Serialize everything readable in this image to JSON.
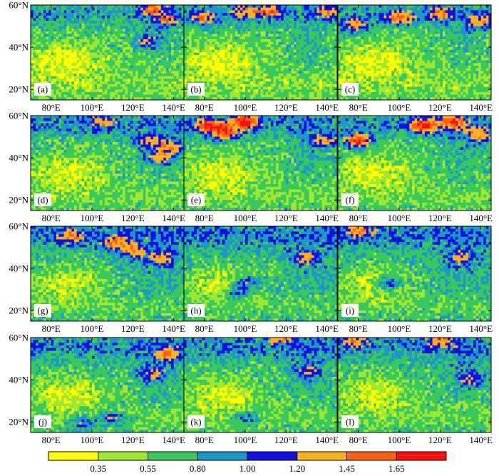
{
  "chart_data": {
    "type": "heatmap",
    "layout": "4x3 panel grid of map contour fields",
    "panels": [
      {
        "label": "(a)",
        "hotspots": [
          {
            "lon": 127,
            "lat": 43,
            "v": 1.25
          },
          {
            "lon": 130,
            "lat": 58,
            "v": 1.3
          },
          {
            "lon": 137,
            "lat": 53,
            "v": 1.2
          }
        ]
      },
      {
        "label": "(b)",
        "hotspots": [
          {
            "lon": 80,
            "lat": 54,
            "v": 1.3
          },
          {
            "lon": 100,
            "lat": 57,
            "v": 1.25
          },
          {
            "lon": 112,
            "lat": 57,
            "v": 1.35
          },
          {
            "lon": 140,
            "lat": 57,
            "v": 1.2
          }
        ]
      },
      {
        "label": "(c)",
        "hotspots": [
          {
            "lon": 78,
            "lat": 50,
            "v": 1.4
          },
          {
            "lon": 100,
            "lat": 54,
            "v": 1.45
          },
          {
            "lon": 120,
            "lat": 56,
            "v": 1.3
          },
          {
            "lon": 140,
            "lat": 52,
            "v": 1.25
          }
        ]
      },
      {
        "label": "(d)",
        "hotspots": [
          {
            "lon": 128,
            "lat": 48,
            "v": 1.2
          },
          {
            "lon": 138,
            "lat": 45,
            "v": 1.35
          },
          {
            "lon": 133,
            "lat": 40,
            "v": 1.25
          },
          {
            "lon": 105,
            "lat": 57,
            "v": 1.15
          }
        ]
      },
      {
        "label": "(e)",
        "hotspots": [
          {
            "lon": 82,
            "lat": 55,
            "v": 1.55
          },
          {
            "lon": 100,
            "lat": 57,
            "v": 1.7
          },
          {
            "lon": 90,
            "lat": 52,
            "v": 1.5
          },
          {
            "lon": 140,
            "lat": 48,
            "v": 1.3
          }
        ]
      },
      {
        "label": "(f)",
        "hotspots": [
          {
            "lon": 80,
            "lat": 48,
            "v": 1.75
          },
          {
            "lon": 112,
            "lat": 55,
            "v": 1.65
          },
          {
            "lon": 126,
            "lat": 57,
            "v": 1.5
          },
          {
            "lon": 140,
            "lat": 51,
            "v": 1.3
          }
        ]
      },
      {
        "label": "(g)",
        "hotspots": [
          {
            "lon": 112,
            "lat": 52,
            "v": 1.3
          },
          {
            "lon": 120,
            "lat": 48,
            "v": 1.25
          },
          {
            "lon": 90,
            "lat": 55,
            "v": 1.2
          },
          {
            "lon": 135,
            "lat": 45,
            "v": 1.2
          }
        ]
      },
      {
        "label": "(h)",
        "hotspots": [
          {
            "lon": 100,
            "lat": 33,
            "v": 1.3
          },
          {
            "lon": 130,
            "lat": 45,
            "v": 1.2
          },
          {
            "lon": 96,
            "lat": 28,
            "v": 1.15
          }
        ]
      },
      {
        "label": "(i)",
        "hotspots": [
          {
            "lon": 95,
            "lat": 33,
            "v": 1.3
          },
          {
            "lon": 80,
            "lat": 58,
            "v": 1.25
          },
          {
            "lon": 130,
            "lat": 45,
            "v": 1.15
          }
        ]
      },
      {
        "label": "(j)",
        "hotspots": [
          {
            "lon": 137,
            "lat": 52,
            "v": 1.3
          },
          {
            "lon": 130,
            "lat": 43,
            "v": 1.25
          },
          {
            "lon": 110,
            "lat": 22,
            "v": 1.2
          },
          {
            "lon": 95,
            "lat": 20,
            "v": 1.2
          }
        ]
      },
      {
        "label": "(k)",
        "hotspots": [
          {
            "lon": 118,
            "lat": 60,
            "v": 1.3
          },
          {
            "lon": 130,
            "lat": 44,
            "v": 1.2
          },
          {
            "lon": 100,
            "lat": 22,
            "v": 1.15
          }
        ]
      },
      {
        "label": "(l)",
        "hotspots": [
          {
            "lon": 120,
            "lat": 59,
            "v": 1.3
          },
          {
            "lon": 78,
            "lat": 59,
            "v": 1.25
          },
          {
            "lon": 135,
            "lat": 40,
            "v": 1.15
          }
        ]
      }
    ],
    "x_axis": {
      "range": [
        70,
        145
      ],
      "ticks": [
        80,
        100,
        120,
        140
      ],
      "tick_labels": [
        "80°E",
        "100°E",
        "120°E",
        "140°E"
      ]
    },
    "y_axis": {
      "range": [
        15,
        60
      ],
      "ticks": [
        20,
        40,
        60
      ],
      "tick_labels": [
        "20°N",
        "40°N",
        "60°N"
      ]
    },
    "colorbar": {
      "colors": [
        "#ffff00",
        "#a0e830",
        "#38c85c",
        "#1c98c8",
        "#1010e0",
        "#ffb020",
        "#ff6010",
        "#ff1010"
      ],
      "boundary_labels": [
        "0.35",
        "0.55",
        "0.80",
        "1.00",
        "1.20",
        "1.45",
        "1.65"
      ]
    }
  }
}
